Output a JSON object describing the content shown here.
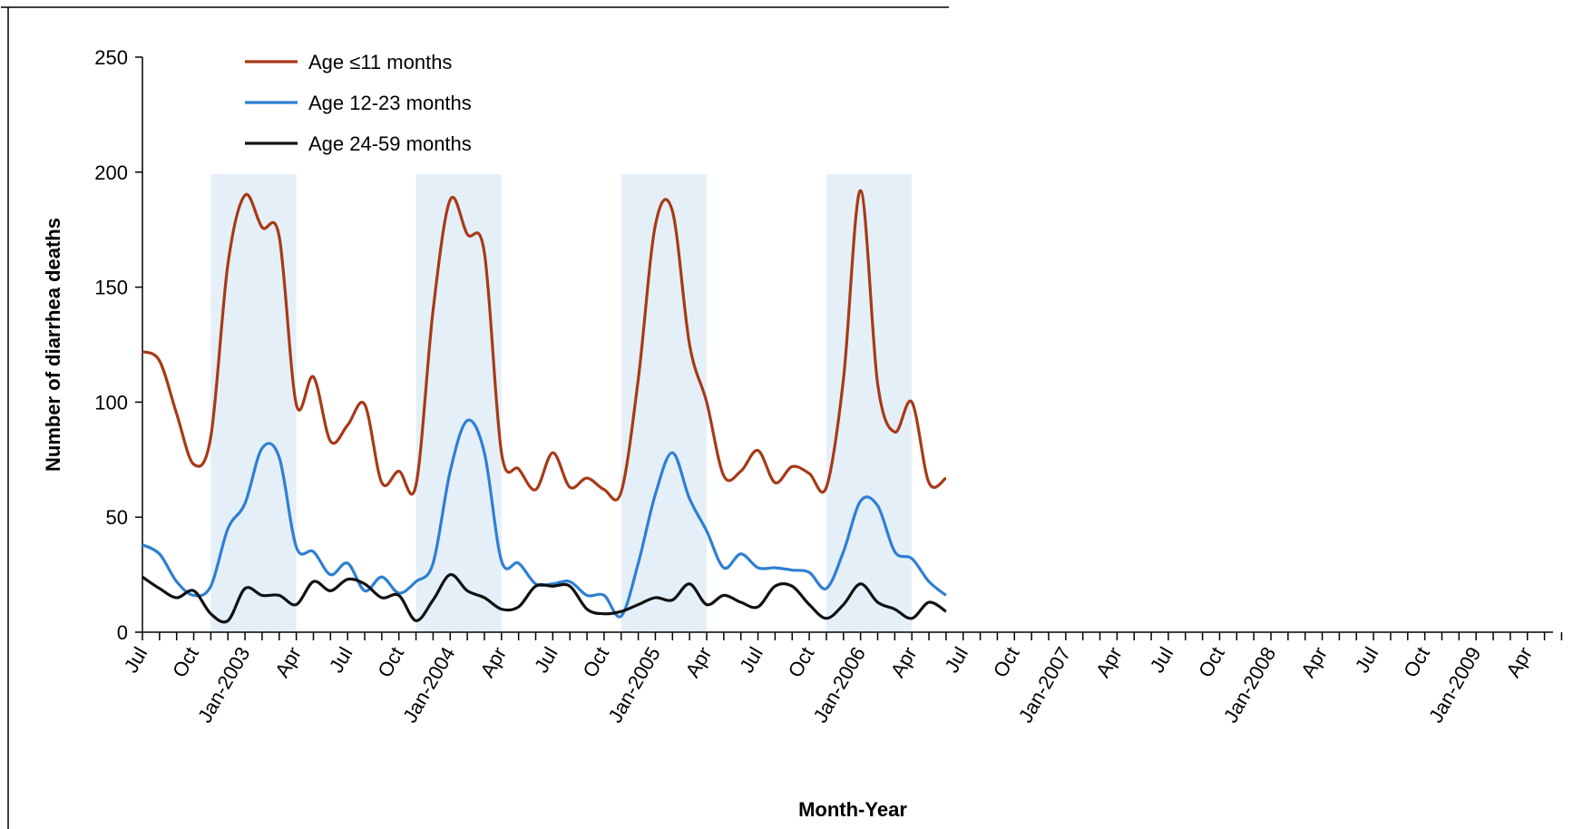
{
  "chart_data": {
    "type": "line",
    "y_label": "Number of diarrhea deaths",
    "x_label": "Month-Year",
    "categories": [
      "Jul",
      null,
      null,
      "Oct",
      null,
      null,
      "Jan-2003",
      null,
      null,
      "Apr",
      null,
      null,
      "Jul",
      null,
      null,
      "Oct",
      null,
      null,
      "Jan-2004",
      null,
      null,
      "Apr",
      null,
      null,
      "Jul",
      null,
      null,
      "Oct",
      null,
      null,
      "Jan-2005",
      null,
      null,
      "Apr",
      null,
      null,
      "Jul",
      null,
      null,
      "Oct",
      null,
      null,
      "Jan-2006",
      null,
      null,
      "Apr",
      null,
      null,
      "Jul",
      null,
      null,
      "Oct",
      null,
      null,
      "Jan-2007",
      null,
      null,
      "Apr",
      null,
      null,
      "Jul",
      null,
      null,
      "Oct",
      null,
      null,
      "Jan-2008",
      null,
      null,
      "Apr",
      null,
      null,
      "Jul",
      null,
      null,
      "Oct",
      null,
      null,
      "Jan-2009",
      null,
      null,
      "Apr",
      null,
      null
    ],
    "series": [
      {
        "name": "Age ≤11 months",
        "color": "#a63a16",
        "values": [
          122,
          118,
          95,
          73,
          85,
          160,
          190,
          176,
          172,
          99,
          111,
          83,
          90,
          99,
          65,
          70,
          64,
          140,
          188,
          173,
          165,
          78,
          71,
          62,
          78,
          63,
          67,
          62,
          61,
          110,
          177,
          183,
          125,
          100,
          68,
          70,
          79,
          65,
          72,
          69,
          63,
          110,
          192,
          108,
          87,
          100,
          65,
          67,
          null,
          null,
          null,
          null,
          null,
          null,
          null,
          null,
          null,
          null,
          null,
          null,
          null,
          null,
          null,
          null,
          null,
          null,
          null,
          null,
          null,
          null,
          null,
          null,
          null,
          null,
          null,
          null,
          null,
          null,
          null,
          null,
          null,
          null,
          null,
          null
        ]
      },
      {
        "name": "Age 12-23 months",
        "color": "#2e7fd2",
        "values": [
          38,
          34,
          22,
          16,
          20,
          45,
          56,
          80,
          76,
          37,
          35,
          25,
          30,
          18,
          24,
          17,
          22,
          30,
          70,
          92,
          78,
          31,
          30,
          21,
          21,
          22,
          16,
          16,
          7,
          30,
          60,
          78,
          58,
          44,
          28,
          34,
          28,
          28,
          27,
          26,
          19,
          35,
          57,
          55,
          35,
          32,
          22,
          16,
          null,
          null,
          null,
          null,
          null,
          null,
          null,
          null,
          null,
          null,
          null,
          null,
          null,
          null,
          null,
          null,
          null,
          null,
          null,
          null,
          null,
          null,
          null,
          null,
          null,
          null,
          null,
          null,
          null,
          null,
          null,
          null,
          null,
          null,
          null,
          null
        ]
      },
      {
        "name": "Age 24-59 months",
        "color": "#111111",
        "values": [
          24,
          19,
          15,
          18,
          8,
          5,
          19,
          16,
          16,
          12,
          22,
          18,
          23,
          21,
          15,
          16,
          5,
          14,
          25,
          18,
          15,
          10,
          11,
          20,
          20,
          20,
          10,
          8,
          9,
          12,
          15,
          14,
          21,
          12,
          16,
          13,
          11,
          20,
          20,
          12,
          6,
          12,
          21,
          13,
          10,
          6,
          13,
          9,
          null,
          null,
          null,
          null,
          null,
          null,
          null,
          null,
          null,
          null,
          null,
          null,
          null,
          null,
          null,
          null,
          null,
          null,
          null,
          null,
          null,
          null,
          null,
          null,
          null,
          null,
          null,
          null,
          null,
          null,
          null,
          null,
          null,
          null,
          null,
          null
        ]
      }
    ],
    "shaded_ranges": [
      [
        4,
        9
      ],
      [
        16,
        21
      ],
      [
        28,
        33
      ],
      [
        40,
        45
      ]
    ],
    "ylim": [
      0,
      250
    ],
    "yticks": [
      0,
      50,
      100,
      150,
      200,
      250
    ],
    "grid": false,
    "legend": "top-left"
  }
}
